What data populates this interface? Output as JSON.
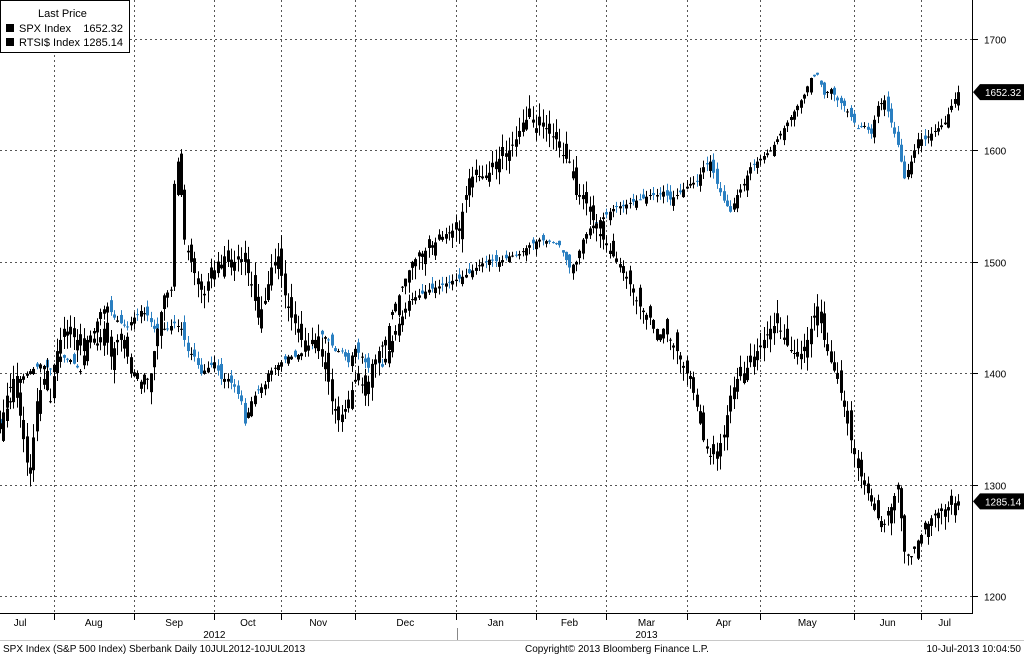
{
  "chart_data": {
    "type": "candlestick",
    "legend": {
      "title": "Last Price",
      "entries": [
        {
          "name": "SPX Index",
          "value": "1652.32"
        },
        {
          "name": "RTSI$ Index",
          "value": "1285.14"
        }
      ],
      "placement": "top-left"
    },
    "y_axis": {
      "side": "right",
      "range": [
        1185,
        1735
      ],
      "ticks": [
        1200,
        1300,
        1400,
        1500,
        1600,
        1700
      ]
    },
    "x_axis": {
      "month_labels": [
        "Jul",
        "Aug",
        "Sep",
        "Oct",
        "Nov",
        "Dec",
        "Jan",
        "Feb",
        "Mar",
        "Apr",
        "May",
        "Jun",
        "Jul"
      ],
      "year_labels": [
        "2012",
        "2013"
      ]
    },
    "last_value_badges": [
      "1652.32",
      "1285.14"
    ],
    "grid": true,
    "series": [
      {
        "name": "SPX Index",
        "color": "#000000",
        "down_color": "#2a7fc1",
        "points": [
          [
            0,
            1355
          ],
          [
            3,
            1375
          ],
          [
            6,
            1395
          ],
          [
            9,
            1402
          ],
          [
            12,
            1408
          ],
          [
            15,
            1404
          ],
          [
            18,
            1415
          ],
          [
            21,
            1412
          ],
          [
            24,
            1402
          ],
          [
            26,
            1430
          ],
          [
            28,
            1438
          ],
          [
            30,
            1455
          ],
          [
            32,
            1460
          ],
          [
            34,
            1450
          ],
          [
            36,
            1445
          ],
          [
            38,
            1442
          ],
          [
            40,
            1450
          ],
          [
            42,
            1456
          ],
          [
            44,
            1452
          ],
          [
            46,
            1440
          ],
          [
            48,
            1440
          ],
          [
            50,
            1440
          ],
          [
            52,
            1445
          ],
          [
            54,
            1440
          ],
          [
            56,
            1420
          ],
          [
            58,
            1415
          ],
          [
            60,
            1400
          ],
          [
            62,
            1405
          ],
          [
            64,
            1410
          ],
          [
            66,
            1395
          ],
          [
            68,
            1395
          ],
          [
            70,
            1388
          ],
          [
            72,
            1375
          ],
          [
            73,
            1355
          ],
          [
            75,
            1375
          ],
          [
            77,
            1385
          ],
          [
            79,
            1390
          ],
          [
            80,
            1400
          ],
          [
            82,
            1405
          ],
          [
            84,
            1410
          ],
          [
            86,
            1415
          ],
          [
            88,
            1415
          ],
          [
            90,
            1418
          ],
          [
            92,
            1425
          ],
          [
            94,
            1430
          ],
          [
            96,
            1435
          ],
          [
            98,
            1430
          ],
          [
            100,
            1420
          ],
          [
            102,
            1420
          ],
          [
            104,
            1410
          ],
          [
            106,
            1422
          ],
          [
            108,
            1415
          ],
          [
            110,
            1405
          ],
          [
            112,
            1412
          ],
          [
            114,
            1406
          ],
          [
            116,
            1420
          ],
          [
            118,
            1438
          ],
          [
            120,
            1451
          ],
          [
            122,
            1465
          ],
          [
            125,
            1470
          ],
          [
            128,
            1475
          ],
          [
            131,
            1478
          ],
          [
            134,
            1482
          ],
          [
            137,
            1485
          ],
          [
            140,
            1490
          ],
          [
            143,
            1497
          ],
          [
            146,
            1502
          ],
          [
            149,
            1500
          ],
          [
            152,
            1505
          ],
          [
            155,
            1507
          ],
          [
            158,
            1515
          ],
          [
            161,
            1520
          ],
          [
            164,
            1518
          ],
          [
            167,
            1515
          ],
          [
            170,
            1495
          ],
          [
            172,
            1500
          ],
          [
            174,
            1520
          ],
          [
            176,
            1530
          ],
          [
            178,
            1535
          ],
          [
            180,
            1540
          ],
          [
            182,
            1545
          ],
          [
            184,
            1550
          ],
          [
            186,
            1550
          ],
          [
            188,
            1553
          ],
          [
            190,
            1555
          ],
          [
            192,
            1557
          ],
          [
            194,
            1560
          ],
          [
            196,
            1560
          ],
          [
            198,
            1563
          ],
          [
            200,
            1556
          ],
          [
            202,
            1560
          ],
          [
            204,
            1565
          ],
          [
            206,
            1570
          ],
          [
            208,
            1572
          ],
          [
            210,
            1585
          ],
          [
            212,
            1590
          ],
          [
            214,
            1570
          ],
          [
            216,
            1555
          ],
          [
            218,
            1545
          ],
          [
            220,
            1560
          ],
          [
            222,
            1570
          ],
          [
            224,
            1585
          ],
          [
            226,
            1590
          ],
          [
            228,
            1595
          ],
          [
            230,
            1600
          ],
          [
            232,
            1610
          ],
          [
            234,
            1620
          ],
          [
            236,
            1630
          ],
          [
            238,
            1640
          ],
          [
            240,
            1650
          ],
          [
            242,
            1665
          ],
          [
            244,
            1668
          ],
          [
            246,
            1650
          ],
          [
            248,
            1655
          ],
          [
            250,
            1645
          ],
          [
            252,
            1640
          ],
          [
            254,
            1630
          ],
          [
            256,
            1620
          ],
          [
            258,
            1622
          ],
          [
            260,
            1615
          ],
          [
            262,
            1640
          ],
          [
            264,
            1645
          ],
          [
            266,
            1625
          ],
          [
            268,
            1605
          ],
          [
            270,
            1575
          ],
          [
            272,
            1590
          ],
          [
            274,
            1610
          ],
          [
            276,
            1610
          ],
          [
            278,
            1615
          ],
          [
            280,
            1620
          ],
          [
            282,
            1625
          ],
          [
            284,
            1640
          ],
          [
            286,
            1652.32
          ]
        ]
      },
      {
        "name": "RTSI$ Index",
        "color": "#000000",
        "down_color": "#000000",
        "points": [
          [
            0,
            1350
          ],
          [
            2,
            1380
          ],
          [
            4,
            1395
          ],
          [
            6,
            1362
          ],
          [
            8,
            1320
          ],
          [
            9,
            1310
          ],
          [
            11,
            1375
          ],
          [
            13,
            1395
          ],
          [
            15,
            1375
          ],
          [
            17,
            1420
          ],
          [
            19,
            1440
          ],
          [
            21,
            1435
          ],
          [
            23,
            1430
          ],
          [
            25,
            1420
          ],
          [
            27,
            1430
          ],
          [
            29,
            1425
          ],
          [
            31,
            1440
          ],
          [
            33,
            1415
          ],
          [
            35,
            1430
          ],
          [
            37,
            1430
          ],
          [
            39,
            1400
          ],
          [
            41,
            1395
          ],
          [
            43,
            1390
          ],
          [
            45,
            1400
          ],
          [
            47,
            1440
          ],
          [
            49,
            1470
          ],
          [
            51,
            1475
          ],
          [
            52,
            1570
          ],
          [
            53,
            1590
          ],
          [
            54,
            1560
          ],
          [
            55,
            1520
          ],
          [
            57,
            1500
          ],
          [
            59,
            1480
          ],
          [
            61,
            1470
          ],
          [
            63,
            1495
          ],
          [
            65,
            1490
          ],
          [
            67,
            1505
          ],
          [
            69,
            1495
          ],
          [
            71,
            1505
          ],
          [
            73,
            1500
          ],
          [
            75,
            1480
          ],
          [
            77,
            1450
          ],
          [
            79,
            1465
          ],
          [
            81,
            1495
          ],
          [
            83,
            1505
          ],
          [
            85,
            1470
          ],
          [
            87,
            1450
          ],
          [
            89,
            1440
          ],
          [
            91,
            1420
          ],
          [
            93,
            1430
          ],
          [
            95,
            1420
          ],
          [
            97,
            1410
          ],
          [
            99,
            1375
          ],
          [
            101,
            1358
          ],
          [
            103,
            1368
          ],
          [
            105,
            1385
          ],
          [
            107,
            1400
          ],
          [
            109,
            1380
          ],
          [
            111,
            1405
          ],
          [
            113,
            1420
          ],
          [
            115,
            1430
          ],
          [
            117,
            1455
          ],
          [
            119,
            1470
          ],
          [
            121,
            1485
          ],
          [
            123,
            1500
          ],
          [
            125,
            1505
          ],
          [
            127,
            1510
          ],
          [
            129,
            1515
          ],
          [
            131,
            1520
          ],
          [
            133,
            1525
          ],
          [
            135,
            1528
          ],
          [
            137,
            1530
          ],
          [
            140,
            1575
          ],
          [
            142,
            1578
          ],
          [
            144,
            1575
          ],
          [
            146,
            1580
          ],
          [
            148,
            1590
          ],
          [
            150,
            1595
          ],
          [
            152,
            1600
          ],
          [
            154,
            1610
          ],
          [
            156,
            1625
          ],
          [
            158,
            1630
          ],
          [
            160,
            1620
          ],
          [
            162,
            1625
          ],
          [
            164,
            1615
          ],
          [
            166,
            1610
          ],
          [
            168,
            1595
          ],
          [
            170,
            1590
          ],
          [
            172,
            1560
          ],
          [
            174,
            1560
          ],
          [
            176,
            1545
          ],
          [
            178,
            1530
          ],
          [
            180,
            1520
          ],
          [
            182,
            1510
          ],
          [
            184,
            1500
          ],
          [
            186,
            1490
          ],
          [
            188,
            1480
          ],
          [
            190,
            1465
          ],
          [
            192,
            1455
          ],
          [
            194,
            1450
          ],
          [
            196,
            1430
          ],
          [
            198,
            1440
          ],
          [
            200,
            1430
          ],
          [
            202,
            1420
          ],
          [
            204,
            1405
          ],
          [
            206,
            1395
          ],
          [
            208,
            1370
          ],
          [
            210,
            1340
          ],
          [
            212,
            1325
          ],
          [
            214,
            1330
          ],
          [
            216,
            1345
          ],
          [
            218,
            1380
          ],
          [
            220,
            1395
          ],
          [
            222,
            1400
          ],
          [
            224,
            1410
          ],
          [
            226,
            1420
          ],
          [
            228,
            1430
          ],
          [
            230,
            1440
          ],
          [
            232,
            1445
          ],
          [
            234,
            1430
          ],
          [
            236,
            1420
          ],
          [
            238,
            1415
          ],
          [
            240,
            1420
          ],
          [
            242,
            1440
          ],
          [
            244,
            1460
          ],
          [
            246,
            1430
          ],
          [
            248,
            1410
          ],
          [
            250,
            1395
          ],
          [
            252,
            1370
          ],
          [
            254,
            1340
          ],
          [
            256,
            1315
          ],
          [
            258,
            1300
          ],
          [
            260,
            1285
          ],
          [
            262,
            1270
          ],
          [
            264,
            1265
          ],
          [
            266,
            1280
          ],
          [
            268,
            1300
          ],
          [
            270,
            1240
          ],
          [
            272,
            1235
          ],
          [
            274,
            1250
          ],
          [
            276,
            1260
          ],
          [
            278,
            1270
          ],
          [
            280,
            1275
          ],
          [
            282,
            1278
          ],
          [
            284,
            1282
          ],
          [
            286,
            1285.14
          ]
        ]
      }
    ]
  },
  "footer": {
    "left": "SPX Index (S&P 500 Index) Sberbank  Daily 10JUL2012-10JUL2013",
    "center": "Copyright© 2013 Bloomberg Finance L.P.",
    "right": "10-Jul-2013 10:04:50"
  }
}
